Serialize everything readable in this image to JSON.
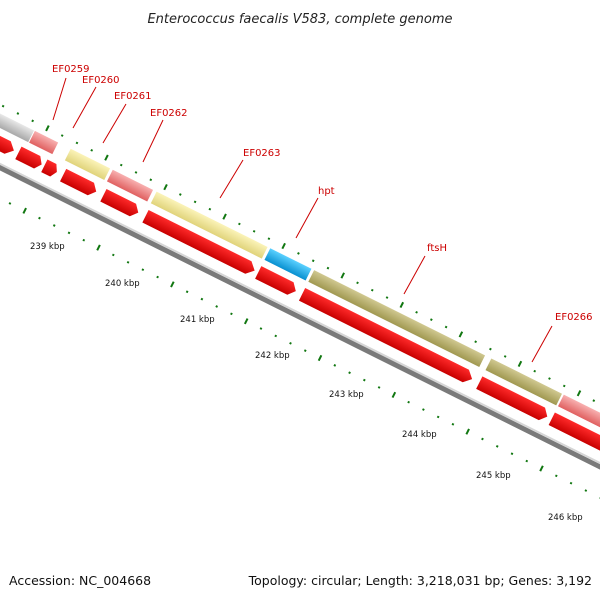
{
  "title": "Enterococcus faecalis V583, complete genome",
  "footer": {
    "accession": "Accession: NC_004668",
    "summary": "Topology: circular; Length: 3,218,031 bp; Genes: 3,192"
  },
  "gene_labels": [
    {
      "key": "ef0259",
      "text": "EF0259"
    },
    {
      "key": "ef0260",
      "text": "EF0260"
    },
    {
      "key": "ef0261",
      "text": "EF0261"
    },
    {
      "key": "ef0262",
      "text": "EF0262"
    },
    {
      "key": "ef0263",
      "text": "EF0263"
    },
    {
      "key": "hpt",
      "text": "hpt"
    },
    {
      "key": "ftsh",
      "text": "ftsH"
    },
    {
      "key": "ef0266",
      "text": "EF0266"
    }
  ],
  "kbp_labels": [
    "239 kbp",
    "240 kbp",
    "241 kbp",
    "242 kbp",
    "243 kbp",
    "244 kbp",
    "245 kbp",
    "246 kbp"
  ],
  "colors": {
    "cds": "#ee0000",
    "gene_gray": "#c8c8c8",
    "gene_pink": "#f08080",
    "gene_pale_yellow": "#f0e68c",
    "gene_cyan": "#1ab0f0",
    "gene_olive": "#b8b070",
    "backbone": "#7a7a7a",
    "ticks": "#117711",
    "label": "#cc0000"
  }
}
